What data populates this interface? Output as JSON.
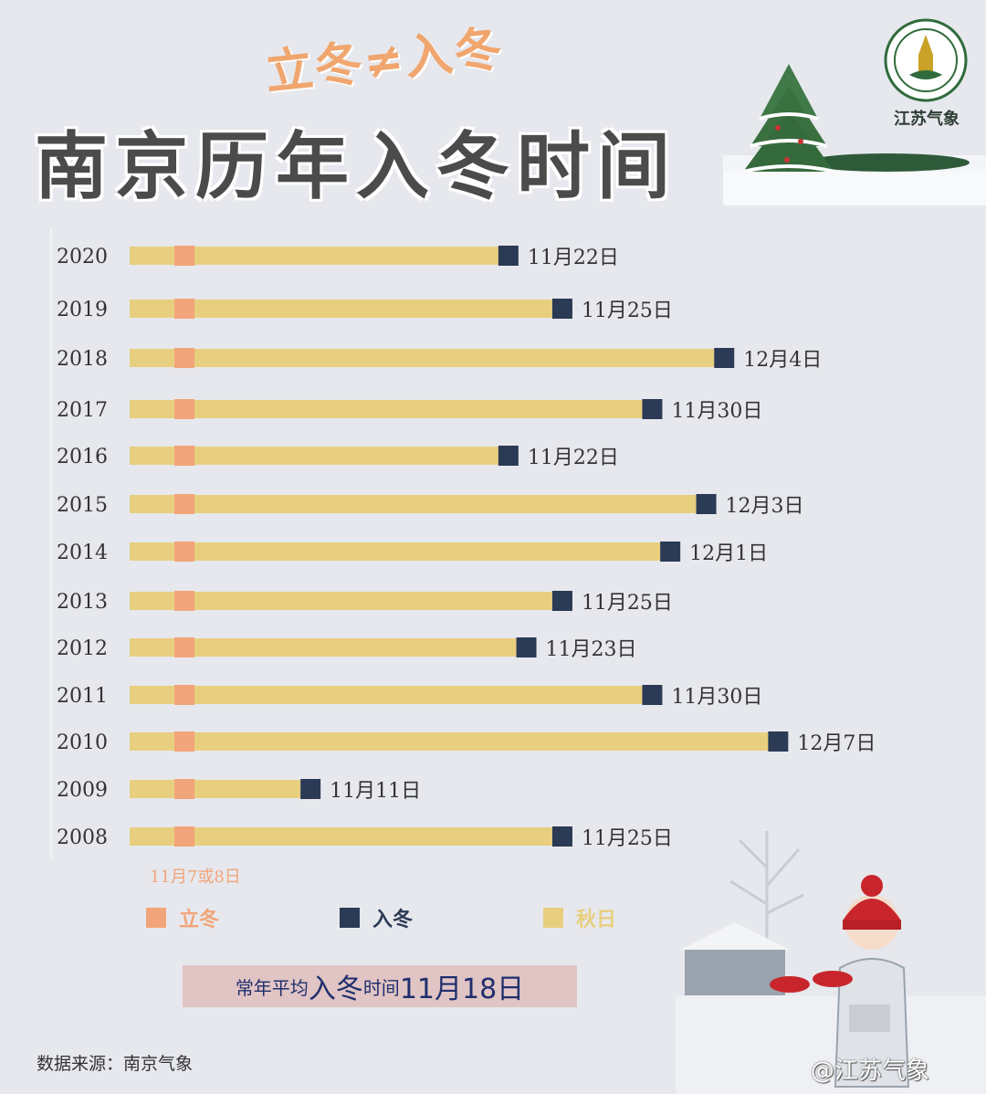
{
  "header": {
    "subtitle": "立冬≠入冬",
    "title": "南京历年入冬时间",
    "logo_label": "江苏气象"
  },
  "chart_data": {
    "type": "bar",
    "categories": [
      "2020",
      "2019",
      "2018",
      "2017",
      "2016",
      "2015",
      "2014",
      "2013",
      "2012",
      "2011",
      "2010",
      "2009",
      "2008"
    ],
    "series": [
      {
        "name": "立冬",
        "start": [
          "11月7日",
          "11月7日",
          "11月7日",
          "11月7日",
          "11月7日",
          "11月7日",
          "11月7日",
          "11月7日",
          "11月7日",
          "11月7日",
          "11月7日",
          "11月7日",
          "11月7日"
        ]
      },
      {
        "name": "入冬",
        "values": [
          "11月22日",
          "11月25日",
          "12月4日",
          "11月30日",
          "11月22日",
          "12月3日",
          "12月1日",
          "11月25日",
          "11月23日",
          "11月30日",
          "12月7日",
          "11月11日",
          "11月25日"
        ]
      }
    ],
    "days_after_nov1": [
      22,
      25,
      34,
      30,
      22,
      33,
      31,
      25,
      23,
      30,
      37,
      11,
      25
    ],
    "lidong_note": "11月7或8日",
    "colors": {
      "lidong": "#f2a57a",
      "rudong": "#2b3a55",
      "qiuri": "#e8cf7f"
    }
  },
  "legend": {
    "lidong": "立冬",
    "rudong": "入冬",
    "qiuri": "秋日"
  },
  "average": {
    "prefix": "常年平均",
    "emph": "入冬",
    "mid": "时间",
    "date": "11月18日"
  },
  "footer": {
    "source": "数据来源：南京气象",
    "watermark": "@江苏气象"
  }
}
